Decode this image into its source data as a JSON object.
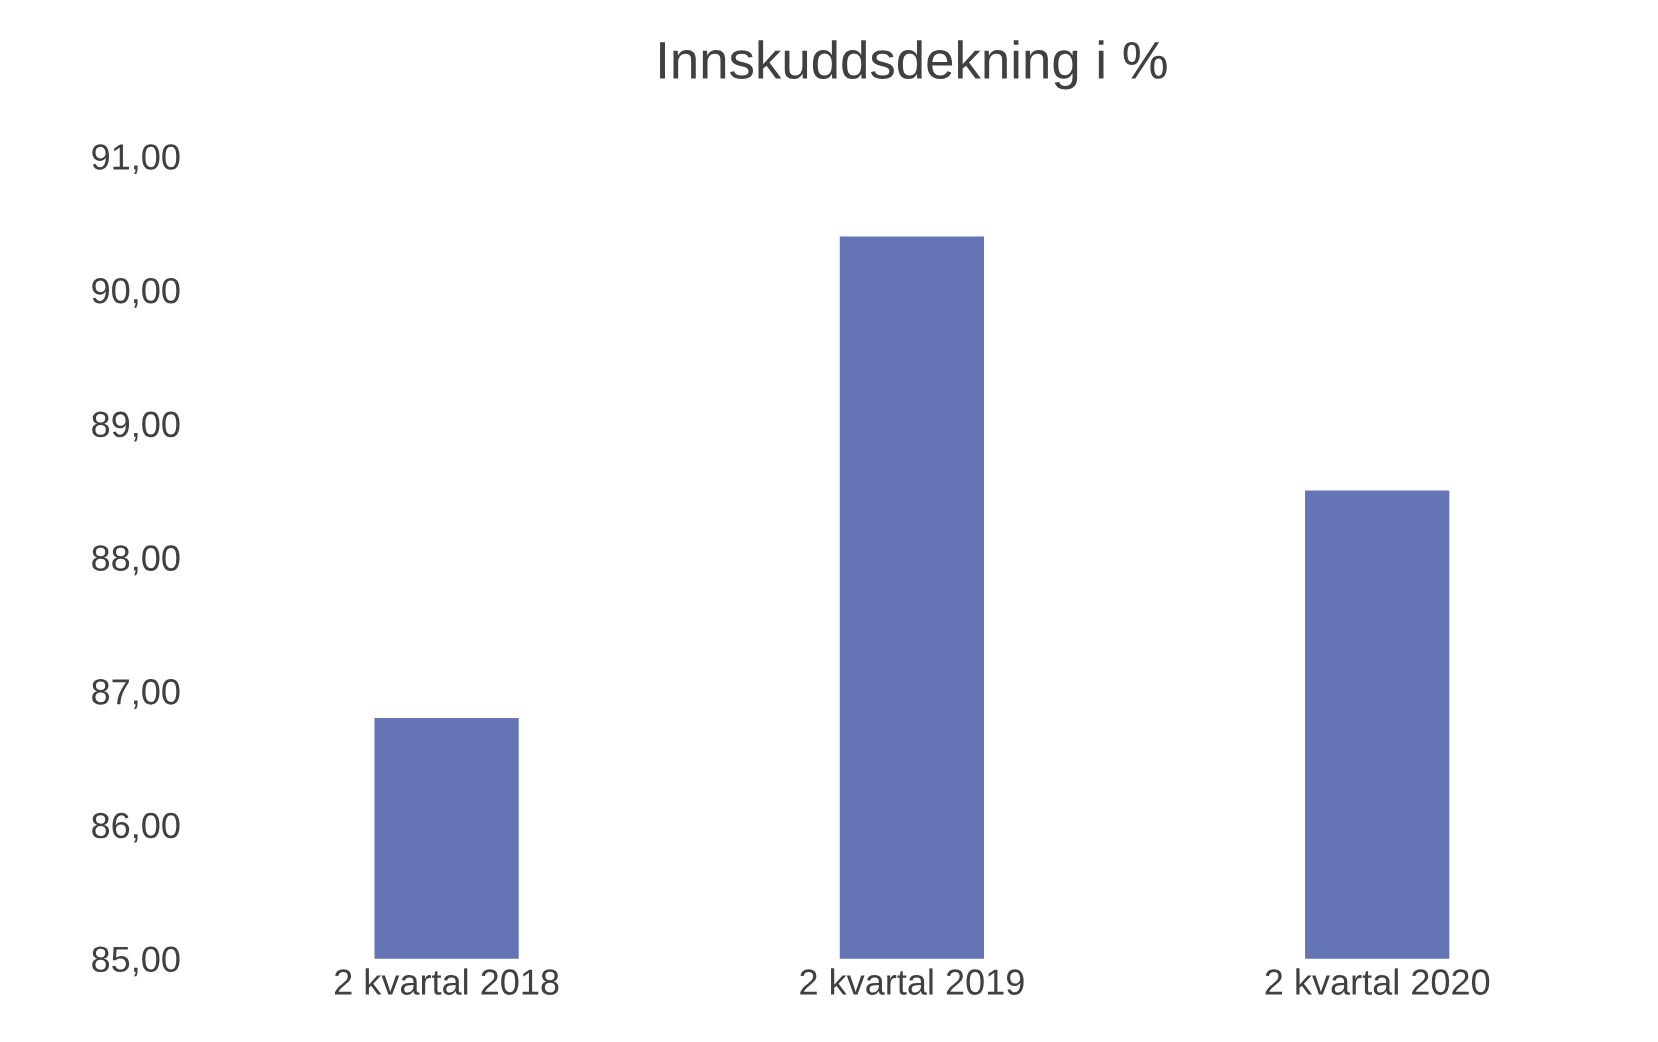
{
  "chart_data": {
    "type": "bar",
    "title": "Innskuddsdekning i %",
    "categories": [
      "2 kvartal 2018",
      "2 kvartal 2019",
      "2 kvartal 2020"
    ],
    "values": [
      86.8,
      90.4,
      88.5
    ],
    "color": "#6574b4",
    "ylim": [
      85,
      91
    ],
    "yticks": [
      {
        "value": 85,
        "label": "85,00"
      },
      {
        "value": 86,
        "label": "86,00"
      },
      {
        "value": 87,
        "label": "87,00"
      },
      {
        "value": 88,
        "label": "88,00"
      },
      {
        "value": 89,
        "label": "89,00"
      },
      {
        "value": 90,
        "label": "90,00"
      },
      {
        "value": 91,
        "label": "91,00"
      }
    ],
    "grid": false
  }
}
